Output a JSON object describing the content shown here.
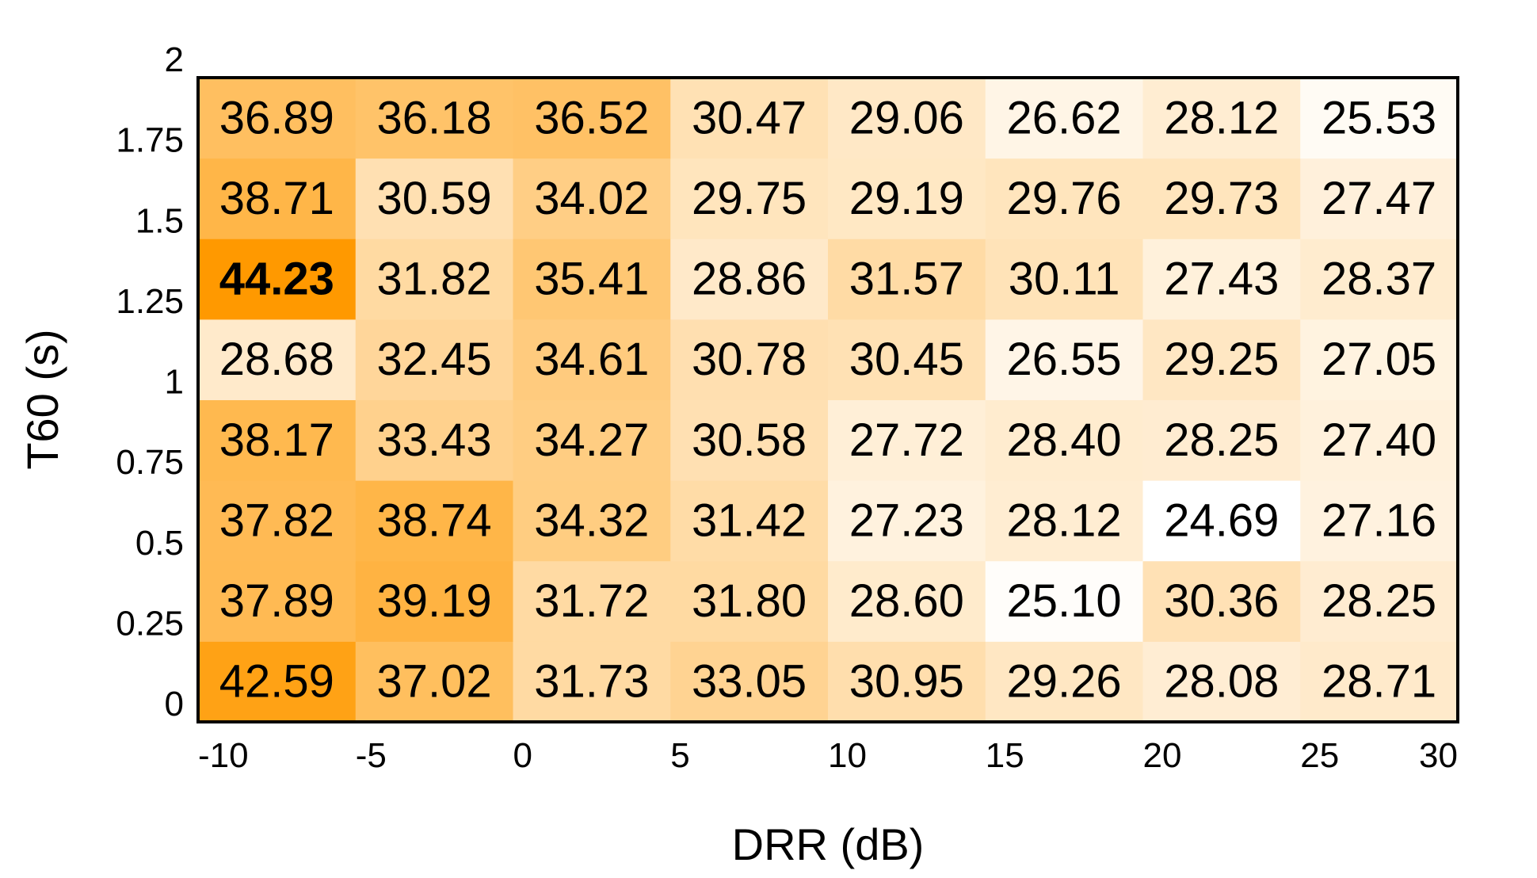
{
  "chart_data": {
    "type": "heatmap",
    "xlabel": "DRR (dB)",
    "ylabel": "T60 (s)",
    "x_ticks": [
      "-10",
      "-5",
      "0",
      "5",
      "10",
      "15",
      "20",
      "25",
      "30"
    ],
    "y_ticks": [
      "0",
      "0.25",
      "0.5",
      "0.75",
      "1",
      "1.25",
      "1.5",
      "1.75",
      "2"
    ],
    "x_range": [
      -10,
      30
    ],
    "y_range": [
      0,
      2
    ],
    "x_bins": [
      -10,
      -5,
      0,
      5,
      10,
      15,
      20,
      25
    ],
    "y_bins": [
      0,
      0.25,
      0.5,
      0.75,
      1,
      1.25,
      1.5,
      1.75
    ],
    "color_low": "#ffffff",
    "color_high": "#ff9900",
    "value_range": [
      24.69,
      44.23
    ],
    "highlight": "max value in bold",
    "grid": false,
    "values": [
      [
        "42.59",
        "37.02",
        "31.73",
        "33.05",
        "30.95",
        "29.26",
        "28.08",
        "28.71"
      ],
      [
        "37.89",
        "39.19",
        "31.72",
        "31.80",
        "28.60",
        "25.10",
        "30.36",
        "28.25"
      ],
      [
        "37.82",
        "38.74",
        "34.32",
        "31.42",
        "27.23",
        "28.12",
        "24.69",
        "27.16"
      ],
      [
        "38.17",
        "33.43",
        "34.27",
        "30.58",
        "27.72",
        "28.40",
        "28.25",
        "27.40"
      ],
      [
        "28.68",
        "32.45",
        "34.61",
        "30.78",
        "30.45",
        "26.55",
        "29.25",
        "27.05"
      ],
      [
        "44.23",
        "31.82",
        "35.41",
        "28.86",
        "31.57",
        "30.11",
        "27.43",
        "28.37"
      ],
      [
        "38.71",
        "30.59",
        "34.02",
        "29.75",
        "29.19",
        "29.76",
        "29.73",
        "27.47"
      ],
      [
        "36.89",
        "36.18",
        "36.52",
        "30.47",
        "29.06",
        "26.62",
        "28.12",
        "25.53"
      ]
    ]
  }
}
